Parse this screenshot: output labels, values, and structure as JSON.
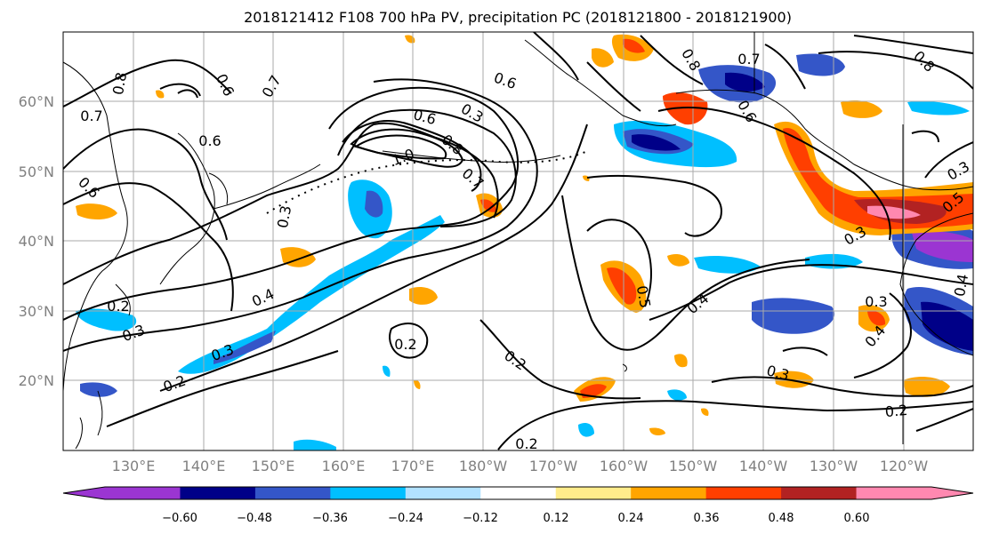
{
  "title": "2018121412 F108 700 hPa PV, precipitation PC (2018121800 - 2018121900)",
  "lon_labels": [
    "130°E",
    "140°E",
    "150°E",
    "160°E",
    "170°E",
    "180°W",
    "170°W",
    "160°W",
    "150°W",
    "140°W",
    "130°W",
    "120°W"
  ],
  "lat_labels": [
    "60°N",
    "50°N",
    "40°N",
    "30°N",
    "20°N"
  ],
  "colorbar": {
    "ticks": [
      "−0.60",
      "−0.48",
      "−0.36",
      "−0.24",
      "−0.12",
      "0.12",
      "0.24",
      "0.36",
      "0.48",
      "0.60"
    ],
    "colors": [
      "#9b35d2",
      "#000088",
      "#3456c8",
      "#00bfff",
      "#b2e2ff",
      "#ffffff",
      "#ffec8b",
      "#ffa500",
      "#ff3f00",
      "#b22222",
      "#ff88b0"
    ]
  },
  "contour_labels": [
    "0.8",
    "0.6",
    "0.7",
    "0.7",
    "0.6",
    "0.6",
    "0.6",
    "0.3",
    "0.6",
    "0.8",
    "1.0",
    "0.7",
    "0.3",
    "0.4",
    "0.2",
    "0.3",
    "0.3",
    "0.2",
    "0.2",
    "0.2",
    "0.5",
    "0.4",
    "0.3",
    "0.4",
    "0.2",
    "0.3",
    "0.5",
    "0.3",
    "0.4",
    "0.7",
    "0.8",
    "0.8",
    "0.6",
    "0.3",
    "0.2"
  ]
}
